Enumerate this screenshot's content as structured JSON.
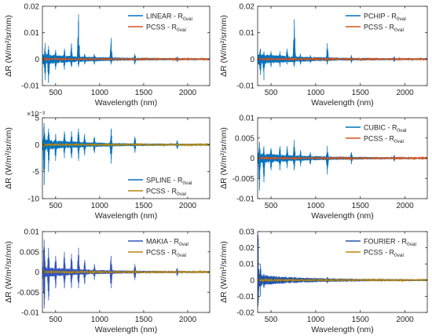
{
  "figure": {
    "xlabel": "Wavelength (nm)",
    "ylabel": "ΔR (W/m²/sr/nm)"
  },
  "colors": {
    "reference": "#d95319",
    "reference_alt": "#b8860b",
    "linear": "#0072bd",
    "makia": "#3355bb",
    "fourier": "#2255aa",
    "axes": "#262626"
  },
  "chart_data": [
    {
      "type": "line",
      "xlim": [
        350,
        2250
      ],
      "ylim": [
        -0.01,
        0.02
      ],
      "yticks": [
        "-0.01",
        "0",
        "0.01",
        "0.02"
      ],
      "xticks": [
        "500",
        "1000",
        "1500",
        "2000"
      ],
      "exponent": "",
      "legend_position": "top-right",
      "grid": false,
      "series": [
        {
          "name": "LINEAR - R",
          "sub": "0val",
          "color": "linear",
          "role": "method",
          "spikes": [
            [
              380,
              0.006,
              -0.008
            ],
            [
              420,
              0.005,
              -0.009
            ],
            [
              500,
              0.0035,
              -0.004
            ],
            [
              600,
              0.004,
              -0.004
            ],
            [
              680,
              0.006,
              -0.003
            ],
            [
              760,
              0.017,
              -0.003
            ],
            [
              830,
              0.002,
              -0.002
            ],
            [
              940,
              0.002,
              -0.002
            ],
            [
              1130,
              0.008,
              -0.002
            ],
            [
              1400,
              0.002,
              -0.002
            ],
            [
              1880,
              0.001,
              -0.001
            ]
          ]
        },
        {
          "name": "PCSS - R",
          "sub": "0val",
          "color": "reference",
          "role": "reference"
        }
      ]
    },
    {
      "type": "line",
      "xlim": [
        350,
        2250
      ],
      "ylim": [
        -0.01,
        0.02
      ],
      "yticks": [
        "-0.01",
        "0",
        "0.01",
        "0.02"
      ],
      "xticks": [
        "500",
        "1000",
        "1500",
        "2000"
      ],
      "exponent": "",
      "legend_position": "top-right",
      "grid": false,
      "series": [
        {
          "name": "PCHIP - R",
          "sub": "0val",
          "color": "linear",
          "role": "method",
          "spikes": [
            [
              380,
              0.004,
              -0.006
            ],
            [
              420,
              0.003,
              -0.008
            ],
            [
              500,
              0.003,
              -0.003
            ],
            [
              600,
              0.003,
              -0.003
            ],
            [
              680,
              0.004,
              -0.002
            ],
            [
              760,
              0.015,
              -0.003
            ],
            [
              830,
              0.002,
              -0.002
            ],
            [
              940,
              0.0015,
              -0.0015
            ],
            [
              1130,
              0.006,
              -0.002
            ],
            [
              1400,
              0.0015,
              -0.0015
            ],
            [
              1880,
              0.001,
              -0.001
            ]
          ]
        },
        {
          "name": "PCSS - R",
          "sub": "0val",
          "color": "reference",
          "role": "reference"
        }
      ]
    },
    {
      "type": "line",
      "xlim": [
        350,
        2250
      ],
      "ylim": [
        -0.01,
        0.005
      ],
      "yticks": [
        "-10",
        "-5",
        "0",
        "5"
      ],
      "xticks": [
        "500",
        "1000",
        "1500",
        "2000"
      ],
      "exponent": "×10⁻³",
      "legend_position": "bottom-right",
      "grid": false,
      "series": [
        {
          "name": "SPLINE - R",
          "sub": "0val",
          "color": "linear",
          "role": "method",
          "spikes": [
            [
              370,
              0.004,
              -0.0075
            ],
            [
              420,
              0.003,
              -0.005
            ],
            [
              500,
              0.002,
              -0.003
            ],
            [
              600,
              0.0025,
              -0.0025
            ],
            [
              680,
              0.0025,
              -0.0025
            ],
            [
              760,
              0.003,
              -0.003
            ],
            [
              830,
              0.002,
              -0.002
            ],
            [
              940,
              0.0015,
              -0.0015
            ],
            [
              1130,
              0.003,
              -0.0035
            ],
            [
              1400,
              0.0015,
              -0.0015
            ],
            [
              1880,
              0.0008,
              -0.0008
            ]
          ]
        },
        {
          "name": "PCSS - R",
          "sub": "0val",
          "color": "reference_alt",
          "role": "reference"
        }
      ]
    },
    {
      "type": "line",
      "xlim": [
        350,
        2250
      ],
      "ylim": [
        -0.01,
        0.01
      ],
      "yticks": [
        "-0.01",
        "-0.005",
        "0",
        "0.005",
        "0.01"
      ],
      "xticks": [
        "500",
        "1000",
        "1500",
        "2000"
      ],
      "exponent": "",
      "legend_position": "top-right",
      "grid": false,
      "series": [
        {
          "name": "CUBIC - R",
          "sub": "0val",
          "color": "linear",
          "role": "method",
          "spikes": [
            [
              370,
              0.004,
              -0.008
            ],
            [
              420,
              0.003,
              -0.006
            ],
            [
              500,
              0.0025,
              -0.003
            ],
            [
              600,
              0.003,
              -0.003
            ],
            [
              680,
              0.003,
              -0.0025
            ],
            [
              760,
              0.0045,
              -0.003
            ],
            [
              830,
              0.002,
              -0.002
            ],
            [
              940,
              0.0015,
              -0.0015
            ],
            [
              1130,
              0.003,
              -0.004
            ],
            [
              1400,
              0.0015,
              -0.0015
            ],
            [
              1880,
              0.0008,
              -0.0008
            ]
          ]
        },
        {
          "name": "PCSS - R",
          "sub": "0val",
          "color": "reference",
          "role": "reference"
        }
      ]
    },
    {
      "type": "line",
      "xlim": [
        350,
        2250
      ],
      "ylim": [
        -0.01,
        0.01
      ],
      "yticks": [
        "-0.01",
        "-0.005",
        "0",
        "0.005",
        "0.01"
      ],
      "xticks": [
        "500",
        "1000",
        "1500",
        "2000"
      ],
      "exponent": "",
      "legend_position": "top-right",
      "grid": false,
      "series": [
        {
          "name": "MAKIA - R",
          "sub": "0val",
          "color": "makia",
          "role": "method",
          "spikes": [
            [
              370,
              0.008,
              -0.009
            ],
            [
              420,
              0.006,
              -0.007
            ],
            [
              500,
              0.004,
              -0.004
            ],
            [
              600,
              0.005,
              -0.004
            ],
            [
              680,
              0.0045,
              -0.004
            ],
            [
              760,
              0.006,
              -0.004
            ],
            [
              830,
              0.003,
              -0.003
            ],
            [
              940,
              0.002,
              -0.002
            ],
            [
              1130,
              0.004,
              -0.004
            ],
            [
              1400,
              0.002,
              -0.002
            ],
            [
              1880,
              0.001,
              -0.001
            ]
          ]
        },
        {
          "name": "PCSS - R",
          "sub": "0val",
          "color": "reference_alt",
          "role": "reference"
        }
      ]
    },
    {
      "type": "line",
      "xlim": [
        350,
        2250
      ],
      "ylim": [
        -0.02,
        0.03
      ],
      "yticks": [
        "-0.02",
        "-0.01",
        "0",
        "0.01",
        "0.02",
        "0.03"
      ],
      "xticks": [
        "500",
        "1000",
        "1500",
        "2000"
      ],
      "exponent": "",
      "legend_position": "top-right",
      "grid": false,
      "series": [
        {
          "name": "FOURIER - R",
          "sub": "0val",
          "color": "fourier",
          "role": "method",
          "spikes": [
            [
              355,
              0.028,
              -0.016
            ],
            [
              380,
              0.01,
              -0.01
            ],
            [
              420,
              0.004,
              -0.005
            ],
            [
              500,
              0.002,
              -0.002
            ],
            [
              760,
              0.002,
              -0.002
            ],
            [
              1130,
              0.002,
              -0.002
            ],
            [
              1400,
              0.001,
              -0.001
            ]
          ]
        },
        {
          "name": "PCSS - R",
          "sub": "0val",
          "color": "reference_alt",
          "role": "reference"
        }
      ]
    }
  ]
}
